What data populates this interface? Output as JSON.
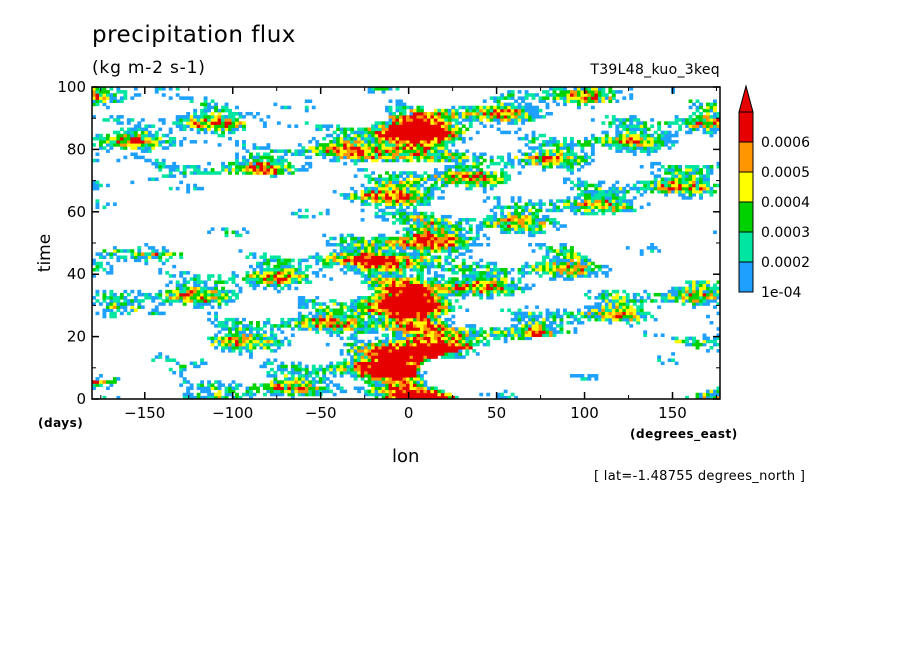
{
  "title": "precipitation flux",
  "units": "(kg m-2 s-1)",
  "run_name": "T39L48_kuo_3keq",
  "footnote": "[ lat=-1.48755 degrees_north ]",
  "chart_data": {
    "type": "heatmap",
    "xlabel": "lon",
    "ylabel": "time",
    "x_units": "(degrees_east)",
    "y_units": "(days)",
    "xlim": [
      -180,
      177
    ],
    "ylim": [
      0,
      100
    ],
    "x_ticks": [
      -150,
      -100,
      -50,
      0,
      50,
      100,
      150
    ],
    "y_ticks": [
      0,
      20,
      40,
      60,
      80,
      100
    ],
    "colorbar": {
      "levels": [
        0.0001,
        0.0002,
        0.0003,
        0.0004,
        0.0005,
        0.0006
      ],
      "labels": [
        "1e-04",
        "0.0002",
        "0.0003",
        "0.0004",
        "0.0005",
        "0.0006"
      ],
      "colors": [
        "#1ea0ff",
        "#00e6a0",
        "#00d200",
        "#ffff00",
        "#ff9600",
        "#e60000"
      ],
      "extend": "max"
    },
    "features": [
      {
        "lon": 0,
        "time_range": [
          0,
          30
        ],
        "note": "strong precipitation band near 0 lon, days 0-30"
      },
      {
        "lon": 0,
        "time_range": [
          30,
          45
        ],
        "note": "strong precipitation near 0 lon around day 35-40"
      },
      {
        "lon": 0,
        "time_range": [
          78,
          95
        ],
        "note": "strong precipitation near 0 lon around day 80-95"
      }
    ]
  }
}
